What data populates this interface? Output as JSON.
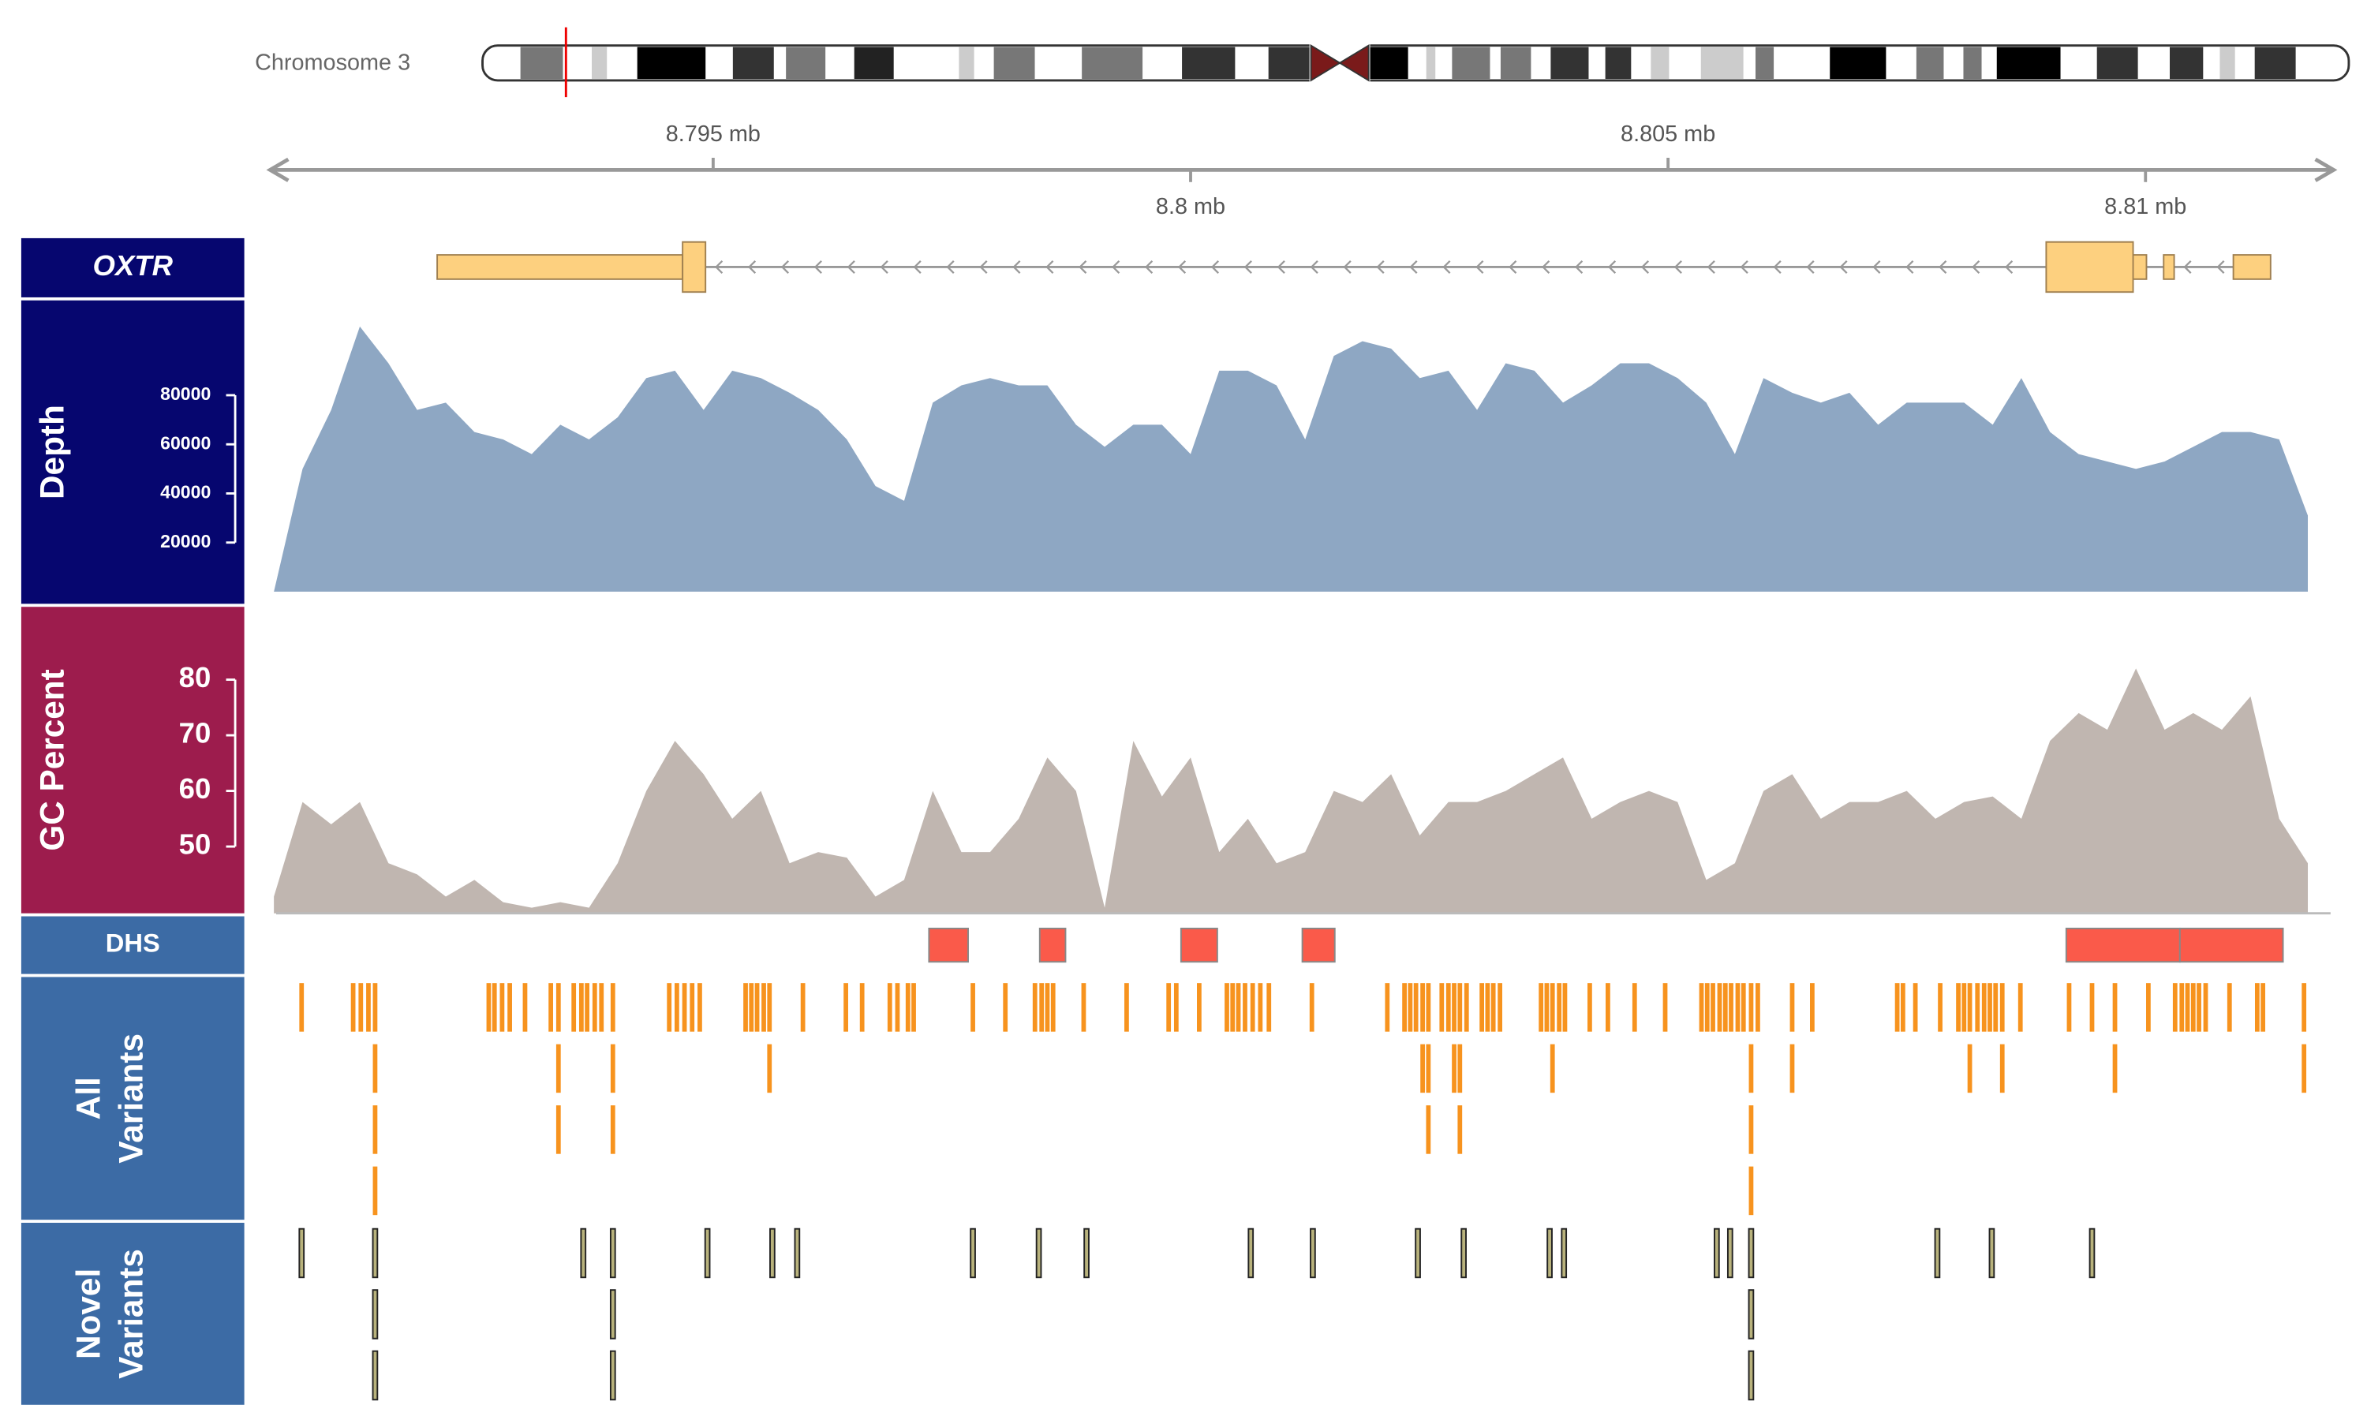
{
  "chart_data": [
    {
      "type": "ideogram-axis",
      "chromosome": "Chromosome 3",
      "xlim": [
        8.79036,
        8.81197
      ],
      "xticks": [
        {
          "value": 8.795,
          "label": "8.795 mb"
        },
        {
          "value": 8.8,
          "label": "8.8 mb"
        },
        {
          "value": 8.805,
          "label": "8.805 mb"
        },
        {
          "value": 8.81,
          "label": "8.81 mb"
        }
      ]
    },
    {
      "type": "gene",
      "label": [
        "OXTR"
      ],
      "start": 8.79211,
      "end": 8.81131,
      "strand": "-",
      "color": "#fdd07f",
      "utr": [
        [
          8.79211,
          8.79468
        ],
        [
          8.80987,
          8.81001
        ],
        [
          8.81019,
          8.8103
        ],
        [
          8.81092,
          8.81131
        ]
      ],
      "cds": [
        [
          8.79468,
          8.79492
        ],
        [
          8.80896,
          8.80987
        ]
      ]
    },
    {
      "type": "area",
      "label": [
        "Depth"
      ],
      "color": "#8ea7c3",
      "x": [
        8.7904,
        8.7907,
        8.791,
        8.7913,
        8.7916,
        8.7919,
        8.7922,
        8.7925,
        8.7928,
        8.7931,
        8.7934,
        8.7937,
        8.794,
        8.7943,
        8.7946,
        8.7949,
        8.7952,
        8.7955,
        8.7958,
        8.7961,
        8.7964,
        8.7967,
        8.797,
        8.7973,
        8.7976,
        8.7979,
        8.7982,
        8.7985,
        8.7988,
        8.7991,
        8.7994,
        8.7997,
        8.8,
        8.8003,
        8.8006,
        8.8009,
        8.8012,
        8.8015,
        8.8018,
        8.8021,
        8.8024,
        8.8027,
        8.803,
        8.8033,
        8.8036,
        8.8039,
        8.8042,
        8.8045,
        8.8048,
        8.8051,
        8.8054,
        8.8057,
        8.806,
        8.8063,
        8.8066,
        8.8069,
        8.8072,
        8.8075,
        8.8078,
        8.8081,
        8.8084,
        8.8087,
        8.809,
        8.8093,
        8.8096,
        8.8099,
        8.8102,
        8.8105,
        8.8108,
        8.8111,
        8.8114,
        8.8117
      ],
      "values": [
        0,
        50000,
        74000,
        108000,
        93000,
        74000,
        77000,
        65000,
        62000,
        56000,
        68000,
        62000,
        71000,
        87000,
        90000,
        74000,
        90000,
        87000,
        81000,
        74000,
        62000,
        43000,
        37000,
        77000,
        84000,
        87000,
        84000,
        84000,
        68000,
        59000,
        68000,
        68000,
        56000,
        90000,
        90000,
        84000,
        62000,
        96000,
        102000,
        99000,
        87000,
        90000,
        74000,
        93000,
        90000,
        77000,
        84000,
        93000,
        93000,
        87000,
        77000,
        56000,
        87000,
        81000,
        77000,
        81000,
        68000,
        77000,
        77000,
        77000,
        68000,
        87000,
        65000,
        56000,
        53000,
        50000,
        53000,
        59000,
        65000,
        65000,
        62000,
        31000
      ],
      "ylim": [
        0,
        118000
      ],
      "yticks": [
        20000,
        40000,
        60000,
        80000
      ]
    },
    {
      "type": "area",
      "label": [
        "GC Percent"
      ],
      "color": "#c0b6b0",
      "x": [
        8.7904,
        8.7907,
        8.791,
        8.7913,
        8.7916,
        8.7919,
        8.7922,
        8.7925,
        8.7928,
        8.7931,
        8.7934,
        8.7937,
        8.794,
        8.7943,
        8.7946,
        8.7949,
        8.7952,
        8.7955,
        8.7958,
        8.7961,
        8.7964,
        8.7967,
        8.797,
        8.7973,
        8.7976,
        8.7979,
        8.7982,
        8.7985,
        8.7988,
        8.7991,
        8.7994,
        8.7997,
        8.8,
        8.8003,
        8.8006,
        8.8009,
        8.8012,
        8.8015,
        8.8018,
        8.8021,
        8.8024,
        8.8027,
        8.803,
        8.8033,
        8.8036,
        8.8039,
        8.8042,
        8.8045,
        8.8048,
        8.8051,
        8.8054,
        8.8057,
        8.806,
        8.8063,
        8.8066,
        8.8069,
        8.8072,
        8.8075,
        8.8078,
        8.8081,
        8.8084,
        8.8087,
        8.809,
        8.8093,
        8.8096,
        8.8099,
        8.8102,
        8.8105,
        8.8108,
        8.8111,
        8.8114,
        8.8117
      ],
      "values": [
        41,
        58,
        54,
        58,
        47,
        45,
        41,
        44,
        40,
        39,
        40,
        39,
        47,
        60,
        69,
        63,
        55,
        60,
        47,
        49,
        48,
        41,
        44,
        60,
        49,
        49,
        55,
        66,
        60,
        39,
        69,
        59,
        66,
        49,
        55,
        47,
        49,
        60,
        58,
        63,
        52,
        58,
        58,
        60,
        63,
        66,
        55,
        58,
        60,
        58,
        44,
        47,
        60,
        63,
        55,
        58,
        58,
        60,
        55,
        58,
        59,
        55,
        69,
        74,
        71,
        82,
        71,
        74,
        71,
        77,
        55,
        47
      ],
      "ylim": [
        38,
        92
      ],
      "yticks": [
        50,
        60,
        70,
        80
      ]
    },
    {
      "type": "ranges",
      "label": [
        "DHS"
      ],
      "color": "#fa5a4a",
      "ranges": [
        [
          8.79726,
          8.79767
        ],
        [
          8.79842,
          8.79869
        ],
        [
          8.7999,
          8.80028
        ],
        [
          8.80117,
          8.80151
        ],
        [
          8.80917,
          8.81036
        ],
        [
          8.81036,
          8.81144
        ]
      ]
    },
    {
      "type": "ticks",
      "label": [
        "All",
        "Variants"
      ],
      "color": "#f7931e",
      "x": [
        8.79069,
        8.79123,
        8.79131,
        8.79139,
        8.79146,
        8.79146,
        8.79146,
        8.79146,
        8.79265,
        8.79271,
        8.79279,
        8.79287,
        8.79303,
        8.7933,
        8.79338,
        8.79338,
        8.79338,
        8.79354,
        8.79362,
        8.79368,
        8.79376,
        8.79383,
        8.79395,
        8.79395,
        8.79395,
        8.79454,
        8.79462,
        8.7947,
        8.79478,
        8.79486,
        8.79534,
        8.7954,
        8.79546,
        8.79553,
        8.79559,
        8.79559,
        8.79594,
        8.79639,
        8.79656,
        8.79685,
        8.79693,
        8.79704,
        8.7971,
        8.79772,
        8.79806,
        8.79837,
        8.79844,
        8.7985,
        8.79856,
        8.79888,
        8.79933,
        8.79977,
        8.79985,
        8.80009,
        8.80038,
        8.80044,
        8.8005,
        8.80057,
        8.80065,
        8.80073,
        8.80082,
        8.80127,
        8.80206,
        8.80224,
        8.8023,
        8.80236,
        8.80243,
        8.80243,
        8.80249,
        8.80249,
        8.80249,
        8.80263,
        8.8027,
        8.80276,
        8.80276,
        8.80282,
        8.80282,
        8.80282,
        8.80289,
        8.80305,
        8.80311,
        8.80317,
        8.80324,
        8.80367,
        8.80373,
        8.80379,
        8.80379,
        8.80386,
        8.80392,
        8.80418,
        8.80437,
        8.80465,
        8.80497,
        8.80535,
        8.80541,
        8.80547,
        8.80554,
        8.8056,
        8.80566,
        8.80573,
        8.80579,
        8.80587,
        8.80587,
        8.80587,
        8.80587,
        8.80594,
        8.8063,
        8.8063,
        8.80651,
        8.8074,
        8.80746,
        8.80759,
        8.80785,
        8.80804,
        8.8081,
        8.80816,
        8.80816,
        8.80824,
        8.80831,
        8.80837,
        8.80843,
        8.8085,
        8.8085,
        8.80869,
        8.8092,
        8.80944,
        8.80968,
        8.80968,
        8.81003,
        8.81031,
        8.81038,
        8.81044,
        8.8105,
        8.81056,
        8.81063,
        8.81088,
        8.81117,
        8.81123,
        8.81166,
        8.81166
      ]
    },
    {
      "type": "ticks",
      "label": [
        "Novel",
        "Variants"
      ],
      "color": "#b8b27c",
      "x": [
        8.79069,
        8.79146,
        8.79146,
        8.79146,
        8.79364,
        8.79395,
        8.79395,
        8.79395,
        8.79494,
        8.79562,
        8.79588,
        8.79772,
        8.79841,
        8.79891,
        8.80063,
        8.80128,
        8.80238,
        8.80286,
        8.80376,
        8.80391,
        8.80551,
        8.80565,
        8.80587,
        8.80587,
        8.80587,
        8.80782,
        8.80839,
        8.80944
      ]
    }
  ]
}
